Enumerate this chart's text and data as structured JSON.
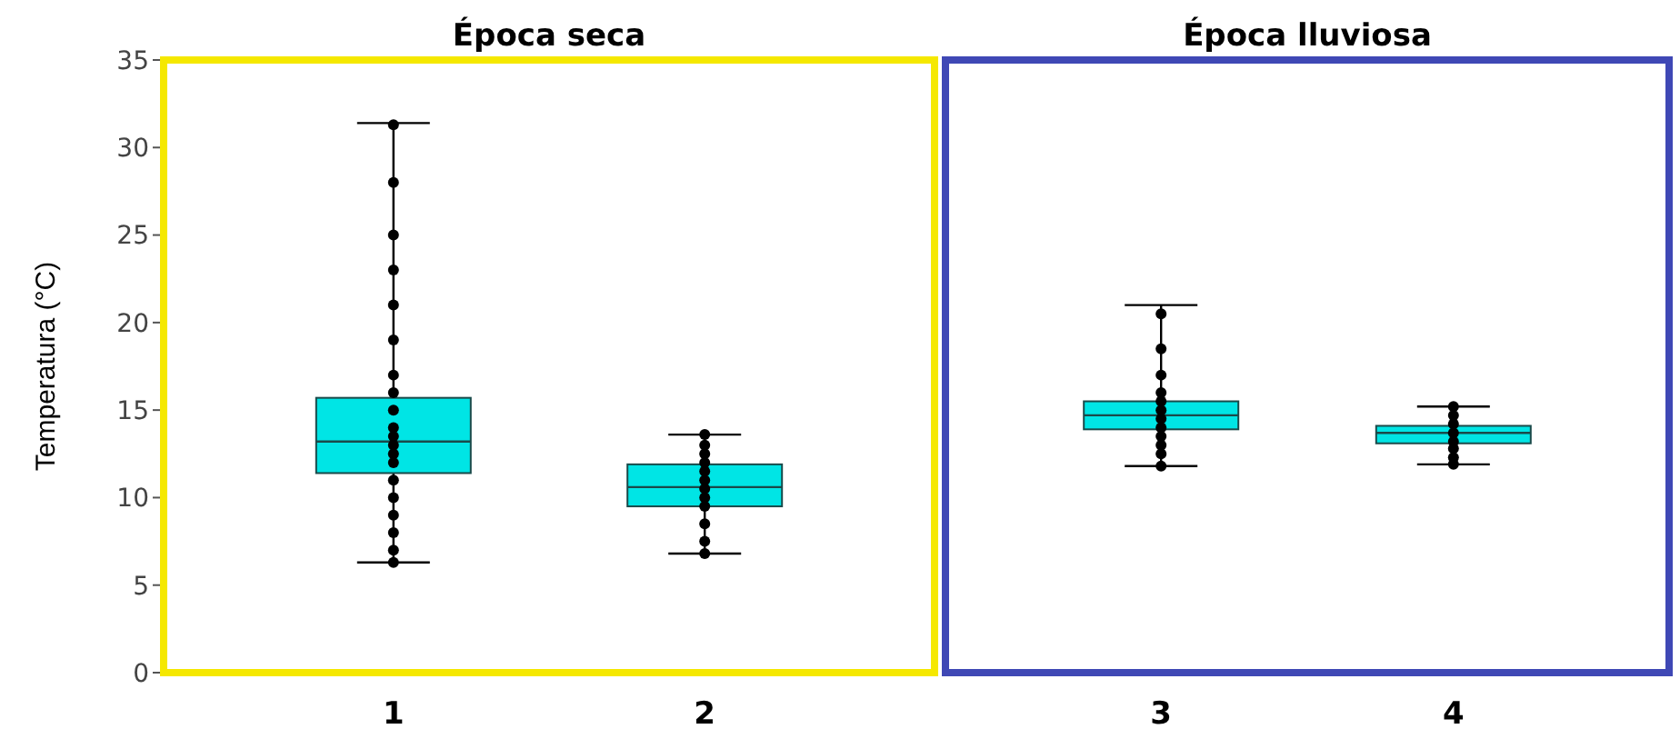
{
  "chart_data": [
    {
      "type": "box",
      "title": "Época seca",
      "ylabel": "Temperatura (°C)",
      "categories": [
        "1",
        "2"
      ],
      "ylim": [
        0,
        35
      ],
      "yticks": [
        0,
        5,
        10,
        15,
        20,
        25,
        30,
        35
      ],
      "series": [
        {
          "color": "#00e5e5",
          "boxes": [
            {
              "low": 6.3,
              "q1": 11.4,
              "median": 13.2,
              "q3": 15.7,
              "high": 31.4
            },
            {
              "low": 6.8,
              "q1": 9.5,
              "median": 10.6,
              "q3": 11.9,
              "high": 13.6
            }
          ]
        },
        {
          "type": "scatter",
          "color": "#000000",
          "x": [
            "1",
            "1",
            "1",
            "1",
            "1",
            "1",
            "1",
            "1",
            "1",
            "1",
            "1",
            "1",
            "1",
            "1",
            "1",
            "1",
            "1",
            "1",
            "1",
            "1",
            "2",
            "2",
            "2",
            "2",
            "2",
            "2",
            "2",
            "2",
            "2",
            "2",
            "2",
            "2"
          ],
          "values": [
            6.3,
            7,
            8,
            9,
            10,
            11,
            12,
            12.5,
            13,
            13.5,
            14,
            15,
            16,
            17,
            19,
            21,
            23,
            25,
            28,
            31.3,
            6.8,
            7.5,
            8.5,
            9.5,
            10,
            10.5,
            11,
            11.5,
            12,
            12.5,
            13,
            13.6
          ]
        }
      ]
    },
    {
      "type": "box",
      "title": "Época lluviosa",
      "categories": [
        "3",
        "4"
      ],
      "ylim": [
        0,
        35
      ],
      "tick_labels": "x",
      "series": [
        {
          "color": "#00e5e5",
          "boxes": [
            {
              "low": 11.8,
              "q1": 13.9,
              "median": 14.7,
              "q3": 15.5,
              "high": 21
            },
            {
              "low": 11.9,
              "q1": 13.1,
              "median": 13.7,
              "q3": 14.1,
              "high": 15.2
            }
          ]
        },
        {
          "type": "scatter",
          "color": "#000000",
          "x": [
            "3",
            "3",
            "3",
            "3",
            "3",
            "3",
            "3",
            "3",
            "3",
            "3",
            "3",
            "3",
            "4",
            "4",
            "4",
            "4",
            "4",
            "4",
            "4",
            "4"
          ],
          "values": [
            11.8,
            12.5,
            13,
            13.5,
            14,
            14.5,
            15,
            15.5,
            16,
            17,
            18.5,
            20.5,
            11.9,
            12.3,
            12.8,
            13.2,
            13.7,
            14.2,
            14.7,
            15.2
          ]
        }
      ]
    }
  ]
}
